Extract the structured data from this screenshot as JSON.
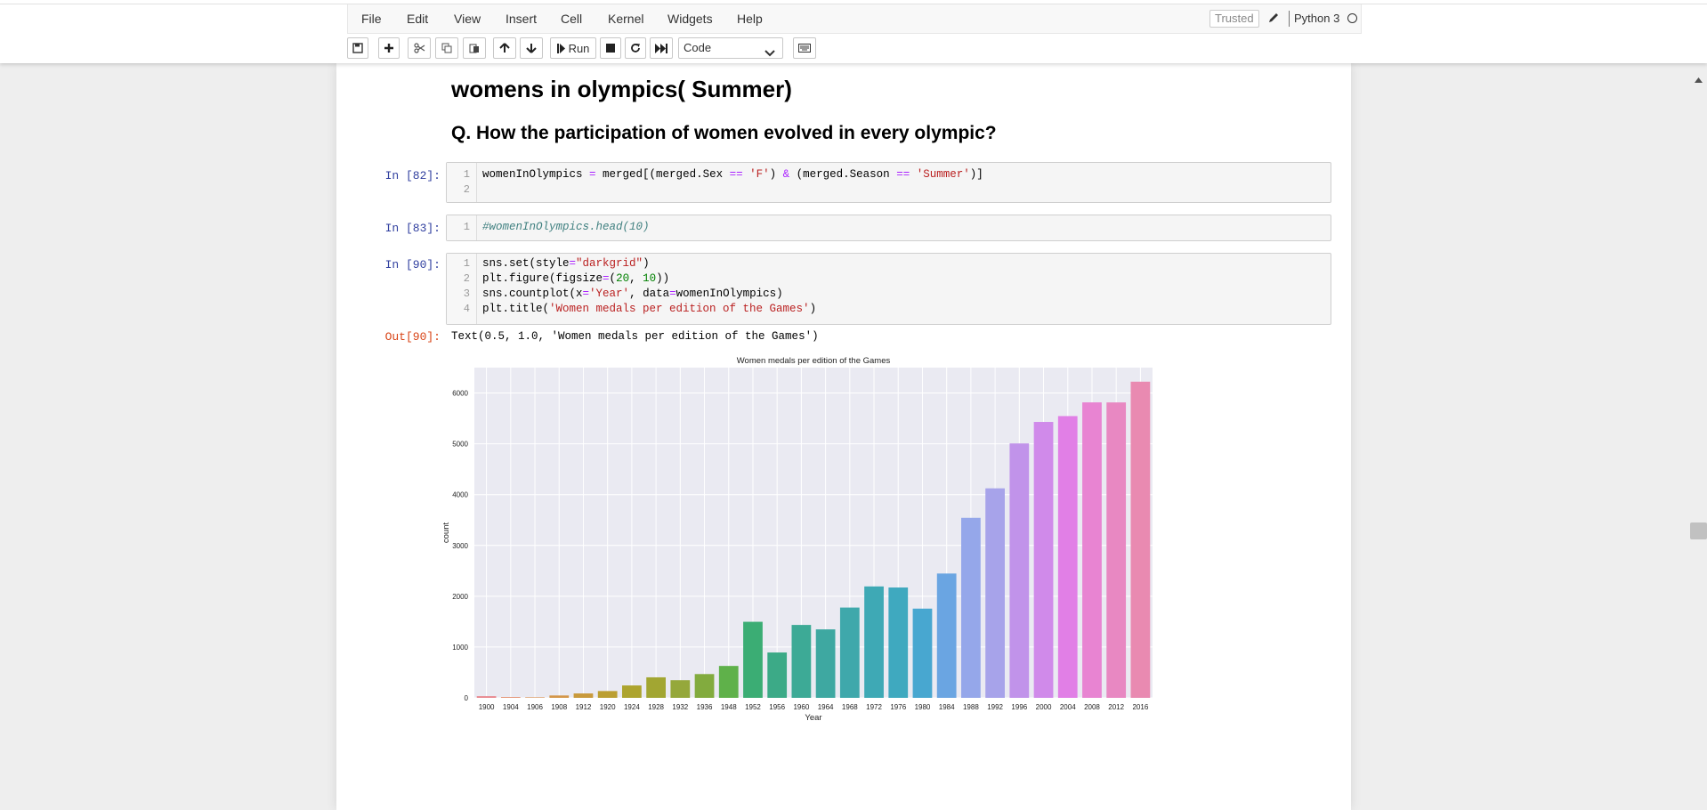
{
  "menu": [
    "File",
    "Edit",
    "View",
    "Insert",
    "Cell",
    "Kernel",
    "Widgets",
    "Help"
  ],
  "kernel": {
    "trusted": "Trusted",
    "name": "Python 3"
  },
  "toolbar": {
    "run_label": "Run",
    "cell_type": "Code"
  },
  "markdown": {
    "h1": "womens in olympics( Summer)",
    "h2": "Q. How the participation of women evolved in every olympic?"
  },
  "cells": [
    {
      "prompt": "In [82]:",
      "lines": [
        "womenInOlympics = merged[(merged.Sex == 'F') & (merged.Season == 'Summer')]",
        ""
      ]
    },
    {
      "prompt": "In [83]:",
      "lines": [
        "#womenInOlympics.head(10)"
      ]
    },
    {
      "prompt": "In [90]:",
      "lines": [
        "sns.set(style=\"darkgrid\")",
        "plt.figure(figsize=(20, 10))",
        "sns.countplot(x='Year', data=womenInOlympics)",
        "plt.title('Women medals per edition of the Games')"
      ]
    }
  ],
  "output": {
    "prompt": "Out[90]:",
    "text": "Text(0.5, 1.0, 'Women medals per edition of the Games')"
  },
  "chart_data": {
    "type": "bar",
    "title": "Women medals per edition of the Games",
    "xlabel": "Year",
    "ylabel": "count",
    "ylim": [
      0,
      6500
    ],
    "yticks": [
      0,
      1000,
      2000,
      3000,
      4000,
      5000,
      6000
    ],
    "grid": true,
    "categories": [
      "1900",
      "1904",
      "1906",
      "1908",
      "1912",
      "1920",
      "1924",
      "1928",
      "1932",
      "1936",
      "1948",
      "1952",
      "1956",
      "1960",
      "1964",
      "1968",
      "1972",
      "1976",
      "1980",
      "1984",
      "1988",
      "1992",
      "1996",
      "2000",
      "2004",
      "2008",
      "2012",
      "2016"
    ],
    "values": [
      33,
      16,
      11,
      47,
      87,
      134,
      244,
      404,
      347,
      468,
      628,
      1497,
      893,
      1435,
      1348,
      1777,
      2193,
      2172,
      1756,
      2447,
      3543,
      4124,
      5008,
      5431,
      5546,
      5816,
      5815,
      6223
    ],
    "colors": [
      "#e8888f",
      "#e4906f",
      "#dd9455",
      "#d4974a",
      "#c99a3c",
      "#bb9f32",
      "#ada42e",
      "#a2a632",
      "#95a83b",
      "#82ab3e",
      "#5fb14a",
      "#3bad74",
      "#3caa87",
      "#3daa96",
      "#3ea8a1",
      "#3fa8ab",
      "#3ea9b5",
      "#3fa9bf",
      "#48a7d0",
      "#6aa5e2",
      "#95a7ea",
      "#a7a3ea",
      "#c193ea",
      "#d08aea",
      "#e17fe6",
      "#e884d2",
      "#e888c2",
      "#e98ab1"
    ]
  }
}
